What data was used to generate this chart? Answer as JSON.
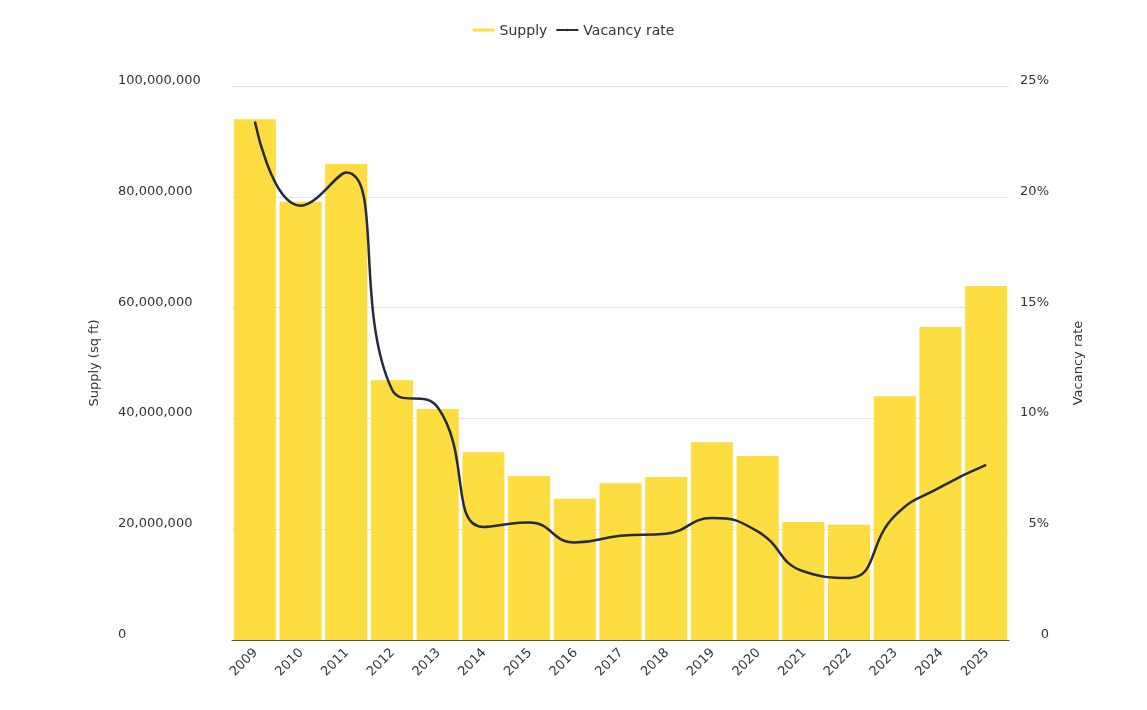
{
  "chart_data": {
    "type": "bar",
    "categories": [
      "2009",
      "2010",
      "2011",
      "2012",
      "2013",
      "2014",
      "2015",
      "2016",
      "2017",
      "2018",
      "2019",
      "2020",
      "2021",
      "2022",
      "2023",
      "2024",
      "2025"
    ],
    "series": [
      {
        "name": "Supply",
        "color": "#fddd3f",
        "values": [
          94000000,
          79100000,
          85900000,
          46900000,
          41700000,
          33900000,
          29600000,
          25500000,
          28300000,
          29400000,
          35700000,
          33200000,
          21300000,
          20800000,
          44000000,
          56500000,
          63900000
        ]
      },
      {
        "name": "Vacancy rate",
        "type": "line",
        "axis": "y2",
        "color": "#262a40",
        "values": [
          23.4,
          19.6,
          21.1,
          11.3,
          10.5,
          5.1,
          5.3,
          4.4,
          4.7,
          4.8,
          5.5,
          4.9,
          3.1,
          2.8,
          5.6,
          6.9,
          7.9
        ]
      }
    ],
    "ylabel": "Supply (sq ft)",
    "y2label": "Vacancy rate",
    "ylim": [
      0,
      100000000
    ],
    "yticks": [
      {
        "value": 0,
        "label": "0"
      },
      {
        "value": 20000000,
        "label": "20,000,000"
      },
      {
        "value": 40000000,
        "label": "40,000,000"
      },
      {
        "value": 60000000,
        "label": "60,000,000"
      },
      {
        "value": 80000000,
        "label": "80,000,000"
      },
      {
        "value": 100000000,
        "label": "100,000,000"
      }
    ],
    "y2lim": [
      0,
      25
    ],
    "y2ticks": [
      {
        "value": 0,
        "label": "0"
      },
      {
        "value": 5,
        "label": "5%"
      },
      {
        "value": 10,
        "label": "10%"
      },
      {
        "value": 15,
        "label": "15%"
      },
      {
        "value": 20,
        "label": "20%"
      },
      {
        "value": 25,
        "label": "25%"
      }
    ],
    "grid": "y",
    "legend": "top",
    "marker": "none"
  }
}
